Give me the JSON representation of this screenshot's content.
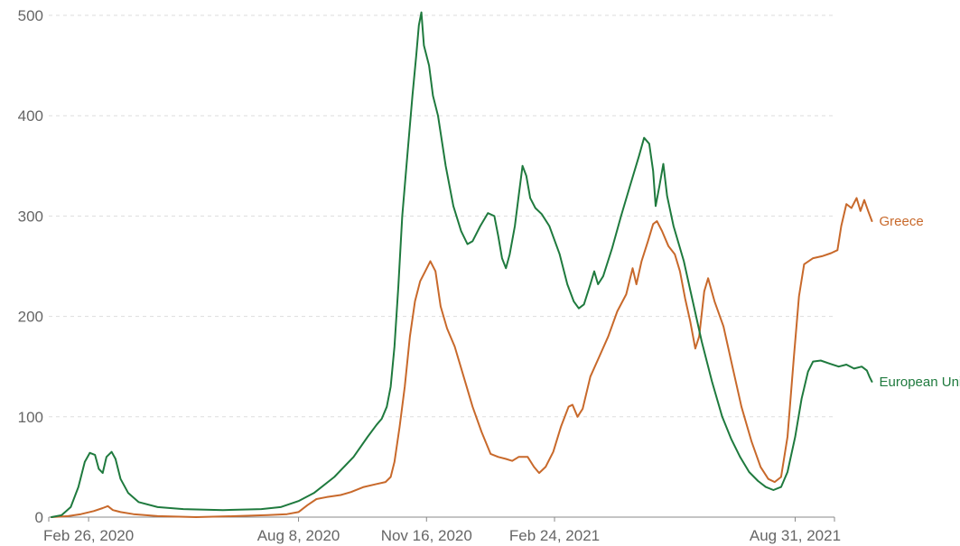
{
  "chart_data": {
    "type": "line",
    "title": "",
    "xlabel": "",
    "ylabel": "",
    "x_range": [
      "2020-01-28",
      "2021-09-30"
    ],
    "ylim": [
      0,
      500
    ],
    "y_ticks": [
      0,
      100,
      200,
      300,
      400,
      500
    ],
    "x_ticks": [
      {
        "date": "2020-02-26",
        "label": "Feb 26, 2020"
      },
      {
        "date": "2020-08-08",
        "label": "Aug 8, 2020"
      },
      {
        "date": "2020-11-16",
        "label": "Nov 16, 2020"
      },
      {
        "date": "2021-02-24",
        "label": "Feb 24, 2021"
      },
      {
        "date": "2021-08-31",
        "label": "Aug 31, 2021"
      }
    ],
    "grid": {
      "horizontal": true,
      "vertical": false,
      "style": "dashed"
    },
    "legend": "inline-right",
    "series": [
      {
        "name": "European Union",
        "color": "#1f7a3e",
        "points": [
          [
            "2020-01-28",
            0
          ],
          [
            "2020-02-05",
            2
          ],
          [
            "2020-02-12",
            10
          ],
          [
            "2020-02-18",
            30
          ],
          [
            "2020-02-23",
            55
          ],
          [
            "2020-02-27",
            64
          ],
          [
            "2020-03-02",
            62
          ],
          [
            "2020-03-05",
            48
          ],
          [
            "2020-03-08",
            44
          ],
          [
            "2020-03-11",
            60
          ],
          [
            "2020-03-15",
            65
          ],
          [
            "2020-03-18",
            58
          ],
          [
            "2020-03-22",
            38
          ],
          [
            "2020-03-28",
            24
          ],
          [
            "2020-04-05",
            15
          ],
          [
            "2020-04-20",
            10
          ],
          [
            "2020-05-10",
            8
          ],
          [
            "2020-06-10",
            7
          ],
          [
            "2020-07-10",
            8
          ],
          [
            "2020-07-25",
            10
          ],
          [
            "2020-08-08",
            16
          ],
          [
            "2020-08-20",
            24
          ],
          [
            "2020-09-05",
            40
          ],
          [
            "2020-09-20",
            60
          ],
          [
            "2020-10-01",
            80
          ],
          [
            "2020-10-08",
            92
          ],
          [
            "2020-10-12",
            98
          ],
          [
            "2020-10-16",
            110
          ],
          [
            "2020-10-19",
            130
          ],
          [
            "2020-10-22",
            170
          ],
          [
            "2020-10-25",
            230
          ],
          [
            "2020-10-28",
            300
          ],
          [
            "2020-11-01",
            360
          ],
          [
            "2020-11-05",
            420
          ],
          [
            "2020-11-08",
            460
          ],
          [
            "2020-11-10",
            490
          ],
          [
            "2020-11-12",
            503
          ],
          [
            "2020-11-14",
            470
          ],
          [
            "2020-11-18",
            450
          ],
          [
            "2020-11-21",
            420
          ],
          [
            "2020-11-25",
            400
          ],
          [
            "2020-12-01",
            350
          ],
          [
            "2020-12-07",
            310
          ],
          [
            "2020-12-13",
            285
          ],
          [
            "2020-12-18",
            272
          ],
          [
            "2020-12-22",
            275
          ],
          [
            "2020-12-28",
            290
          ],
          [
            "2021-01-03",
            303
          ],
          [
            "2021-01-08",
            300
          ],
          [
            "2021-01-11",
            280
          ],
          [
            "2021-01-14",
            258
          ],
          [
            "2021-01-17",
            248
          ],
          [
            "2021-01-20",
            262
          ],
          [
            "2021-01-24",
            290
          ],
          [
            "2021-01-27",
            320
          ],
          [
            "2021-01-30",
            350
          ],
          [
            "2021-02-02",
            340
          ],
          [
            "2021-02-05",
            318
          ],
          [
            "2021-02-09",
            308
          ],
          [
            "2021-02-14",
            302
          ],
          [
            "2021-02-20",
            290
          ],
          [
            "2021-02-28",
            262
          ],
          [
            "2021-03-06",
            232
          ],
          [
            "2021-03-11",
            215
          ],
          [
            "2021-03-15",
            208
          ],
          [
            "2021-03-19",
            212
          ],
          [
            "2021-03-24",
            232
          ],
          [
            "2021-03-27",
            245
          ],
          [
            "2021-03-30",
            232
          ],
          [
            "2021-04-03",
            240
          ],
          [
            "2021-04-10",
            268
          ],
          [
            "2021-04-17",
            300
          ],
          [
            "2021-04-24",
            330
          ],
          [
            "2021-05-01",
            360
          ],
          [
            "2021-05-05",
            378
          ],
          [
            "2021-05-09",
            372
          ],
          [
            "2021-05-12",
            345
          ],
          [
            "2021-05-14",
            310
          ],
          [
            "2021-05-17",
            330
          ],
          [
            "2021-05-20",
            352
          ],
          [
            "2021-05-23",
            320
          ],
          [
            "2021-05-28",
            290
          ],
          [
            "2021-06-05",
            255
          ],
          [
            "2021-06-12",
            215
          ],
          [
            "2021-06-19",
            175
          ],
          [
            "2021-06-27",
            135
          ],
          [
            "2021-07-05",
            100
          ],
          [
            "2021-07-12",
            78
          ],
          [
            "2021-07-19",
            60
          ],
          [
            "2021-07-26",
            45
          ],
          [
            "2021-08-02",
            36
          ],
          [
            "2021-08-08",
            30
          ],
          [
            "2021-08-14",
            27
          ],
          [
            "2021-08-20",
            30
          ],
          [
            "2021-08-25",
            45
          ],
          [
            "2021-08-31",
            80
          ],
          [
            "2021-09-05",
            118
          ],
          [
            "2021-09-10",
            145
          ],
          [
            "2021-09-14",
            155
          ],
          [
            "2021-09-20",
            156
          ],
          [
            "2021-09-27",
            153
          ],
          [
            "2021-10-04",
            150
          ],
          [
            "2021-10-10",
            152
          ],
          [
            "2021-10-16",
            148
          ],
          [
            "2021-10-22",
            150
          ],
          [
            "2021-10-26",
            146
          ],
          [
            "2021-10-28",
            140
          ],
          [
            "2021-10-30",
            135
          ]
        ]
      },
      {
        "name": "Greece",
        "color": "#c8692b",
        "points": [
          [
            "2020-01-28",
            0
          ],
          [
            "2020-02-10",
            1
          ],
          [
            "2020-02-20",
            3
          ],
          [
            "2020-03-01",
            6
          ],
          [
            "2020-03-08",
            9
          ],
          [
            "2020-03-12",
            11
          ],
          [
            "2020-03-16",
            7
          ],
          [
            "2020-03-22",
            5
          ],
          [
            "2020-04-01",
            3
          ],
          [
            "2020-04-20",
            1
          ],
          [
            "2020-05-20",
            0
          ],
          [
            "2020-06-20",
            1
          ],
          [
            "2020-07-15",
            2
          ],
          [
            "2020-07-30",
            3
          ],
          [
            "2020-08-08",
            5
          ],
          [
            "2020-08-15",
            12
          ],
          [
            "2020-08-22",
            18
          ],
          [
            "2020-08-30",
            20
          ],
          [
            "2020-09-10",
            22
          ],
          [
            "2020-09-18",
            25
          ],
          [
            "2020-09-28",
            30
          ],
          [
            "2020-10-08",
            33
          ],
          [
            "2020-10-15",
            35
          ],
          [
            "2020-10-19",
            40
          ],
          [
            "2020-10-22",
            55
          ],
          [
            "2020-10-26",
            90
          ],
          [
            "2020-10-30",
            130
          ],
          [
            "2020-11-03",
            180
          ],
          [
            "2020-11-07",
            215
          ],
          [
            "2020-11-11",
            235
          ],
          [
            "2020-11-15",
            245
          ],
          [
            "2020-11-19",
            255
          ],
          [
            "2020-11-23",
            245
          ],
          [
            "2020-11-27",
            210
          ],
          [
            "2020-12-02",
            188
          ],
          [
            "2020-12-08",
            170
          ],
          [
            "2020-12-15",
            140
          ],
          [
            "2020-12-22",
            110
          ],
          [
            "2020-12-29",
            85
          ],
          [
            "2021-01-05",
            63
          ],
          [
            "2021-01-11",
            60
          ],
          [
            "2021-01-17",
            58
          ],
          [
            "2021-01-22",
            56
          ],
          [
            "2021-01-27",
            60
          ],
          [
            "2021-02-03",
            60
          ],
          [
            "2021-02-08",
            50
          ],
          [
            "2021-02-12",
            44
          ],
          [
            "2021-02-17",
            50
          ],
          [
            "2021-02-23",
            65
          ],
          [
            "2021-03-01",
            90
          ],
          [
            "2021-03-07",
            110
          ],
          [
            "2021-03-10",
            112
          ],
          [
            "2021-03-14",
            100
          ],
          [
            "2021-03-18",
            108
          ],
          [
            "2021-03-24",
            140
          ],
          [
            "2021-03-31",
            160
          ],
          [
            "2021-04-07",
            180
          ],
          [
            "2021-04-14",
            205
          ],
          [
            "2021-04-21",
            222
          ],
          [
            "2021-04-26",
            248
          ],
          [
            "2021-04-29",
            232
          ],
          [
            "2021-05-03",
            255
          ],
          [
            "2021-05-08",
            275
          ],
          [
            "2021-05-12",
            292
          ],
          [
            "2021-05-15",
            295
          ],
          [
            "2021-05-19",
            285
          ],
          [
            "2021-05-24",
            270
          ],
          [
            "2021-05-29",
            262
          ],
          [
            "2021-06-02",
            245
          ],
          [
            "2021-06-06",
            218
          ],
          [
            "2021-06-10",
            195
          ],
          [
            "2021-06-14",
            168
          ],
          [
            "2021-06-17",
            180
          ],
          [
            "2021-06-21",
            225
          ],
          [
            "2021-06-24",
            238
          ],
          [
            "2021-06-29",
            215
          ],
          [
            "2021-07-06",
            190
          ],
          [
            "2021-07-13",
            150
          ],
          [
            "2021-07-20",
            110
          ],
          [
            "2021-07-28",
            75
          ],
          [
            "2021-08-04",
            50
          ],
          [
            "2021-08-10",
            38
          ],
          [
            "2021-08-15",
            35
          ],
          [
            "2021-08-20",
            40
          ],
          [
            "2021-08-25",
            80
          ],
          [
            "2021-08-30",
            160
          ],
          [
            "2021-09-03",
            220
          ],
          [
            "2021-09-07",
            252
          ],
          [
            "2021-09-14",
            258
          ],
          [
            "2021-09-21",
            260
          ],
          [
            "2021-09-28",
            263
          ],
          [
            "2021-10-03",
            266
          ],
          [
            "2021-10-06",
            290
          ],
          [
            "2021-10-10",
            312
          ],
          [
            "2021-10-14",
            308
          ],
          [
            "2021-10-18",
            318
          ],
          [
            "2021-10-21",
            305
          ],
          [
            "2021-10-24",
            316
          ],
          [
            "2021-10-27",
            305
          ],
          [
            "2021-10-30",
            295
          ]
        ]
      }
    ]
  }
}
